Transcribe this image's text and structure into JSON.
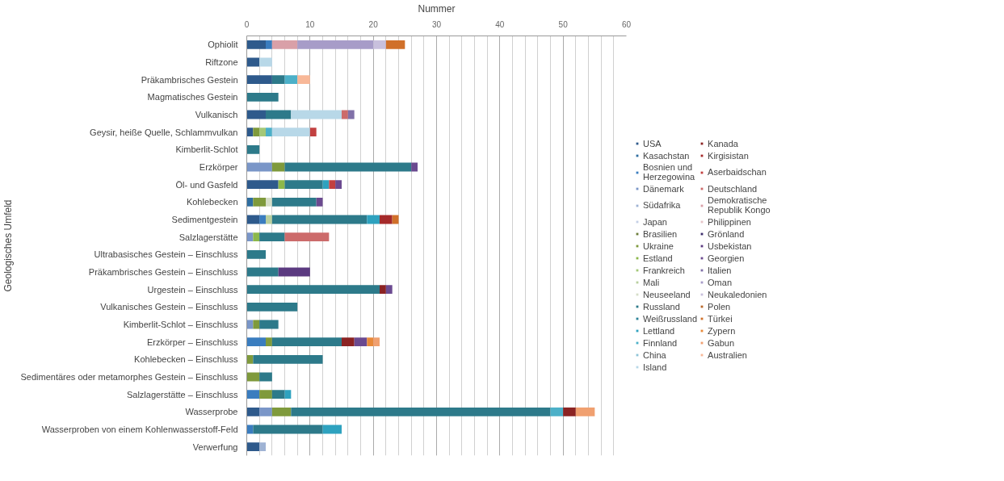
{
  "chart_data": {
    "type": "bar",
    "orientation": "horizontal",
    "stacked": true,
    "xlabel": "Nummer",
    "ylabel": "Geologisches Umfeld",
    "xlim": [
      0,
      60
    ],
    "xticks": [
      0,
      10,
      20,
      30,
      40,
      50,
      60
    ],
    "grid": "x",
    "legend": "right",
    "categories": [
      "Ophiolit",
      "Riftzone",
      "Präkambrisches Gestein",
      "Magmatisches Gestein",
      "Vulkanisch",
      "Geysir, heiße Quelle, Schlammvulkan",
      "Kimberlit-Schlot",
      "Erzkörper",
      "Öl- und Gasfeld",
      "Kohlebecken",
      "Sedimentgestein",
      "Salzlagerstätte",
      "Ultrabasisches Gestein – Einschluss",
      "Präkambrisches Gestein – Einschluss",
      "Urgestein – Einschluss",
      "Vulkanisches Gestein – Einschluss",
      "Kimberlit-Schlot – Einschluss",
      "Erzkörper – Einschluss",
      "Kohlebecken – Einschluss",
      "Sedimentäres oder metamorphes Gestein – Einschluss",
      "Salzlagerstätte – Einschluss",
      "Wasserprobe",
      "Wasserproben von einem Kohlenwasserstoff-Feld",
      "Verwerfung"
    ],
    "series": [
      {
        "name": "USA",
        "color": "#2e5a8c",
        "values": [
          3,
          2,
          4,
          0,
          3,
          1,
          0,
          0,
          5,
          0,
          2,
          0,
          0,
          0,
          0,
          0,
          0,
          0,
          0,
          0,
          0,
          2,
          0,
          2
        ]
      },
      {
        "name": "Kasachstan",
        "color": "#2f6ea0",
        "values": [
          0,
          0,
          0,
          0,
          0,
          0,
          0,
          0,
          0,
          1,
          0,
          0,
          0,
          0,
          0,
          0,
          0,
          0,
          0,
          0,
          0,
          0,
          0,
          0
        ]
      },
      {
        "name": "Bosnien und Herzegowina",
        "color": "#3a7dbf",
        "values": [
          1,
          0,
          0,
          0,
          0,
          0,
          0,
          0,
          0,
          0,
          1,
          0,
          0,
          0,
          0,
          0,
          0,
          3,
          0,
          0,
          2,
          0,
          1,
          0
        ]
      },
      {
        "name": "Dänemark",
        "color": "#7a96c8",
        "values": [
          0,
          0,
          0,
          0,
          0,
          0,
          0,
          4,
          0,
          0,
          0,
          1,
          0,
          0,
          0,
          0,
          1,
          0,
          0,
          0,
          0,
          2,
          0,
          0
        ]
      },
      {
        "name": "Südafrika",
        "color": "#9fb3d4",
        "values": [
          0,
          0,
          0,
          0,
          0,
          0,
          0,
          0,
          0,
          0,
          0,
          0,
          0,
          0,
          0,
          0,
          0,
          0,
          0,
          0,
          0,
          0,
          0,
          1
        ]
      },
      {
        "name": "Japan",
        "color": "#c4d0e6",
        "values": [
          0,
          0,
          0,
          0,
          0,
          0,
          0,
          0,
          0,
          0,
          0,
          0,
          0,
          0,
          0,
          0,
          0,
          0,
          0,
          0,
          0,
          0,
          0,
          0
        ]
      },
      {
        "name": "Brasilien",
        "color": "#6b7d3a",
        "values": [
          0,
          0,
          0,
          0,
          0,
          0,
          0,
          0,
          0,
          0,
          0,
          0,
          0,
          0,
          0,
          0,
          0,
          0,
          0,
          0,
          0,
          0,
          0,
          0
        ]
      },
      {
        "name": "Ukraine",
        "color": "#7f9a3c",
        "values": [
          0,
          0,
          0,
          0,
          0,
          1,
          0,
          2,
          0,
          2,
          0,
          0,
          0,
          0,
          0,
          0,
          1,
          1,
          1,
          2,
          2,
          3,
          0,
          0
        ]
      },
      {
        "name": "Estland",
        "color": "#8cb84a",
        "values": [
          0,
          0,
          0,
          0,
          0,
          0,
          0,
          0,
          1,
          0,
          0,
          1,
          0,
          0,
          0,
          0,
          0,
          0,
          0,
          0,
          0,
          0,
          0,
          0
        ]
      },
      {
        "name": "Frankreich",
        "color": "#a4c878",
        "values": [
          0,
          0,
          0,
          0,
          0,
          1,
          0,
          0,
          0,
          0,
          0,
          0,
          0,
          0,
          0,
          0,
          0,
          0,
          0,
          0,
          0,
          0,
          0,
          0
        ]
      },
      {
        "name": "Mali",
        "color": "#b9cf9f",
        "values": [
          0,
          0,
          0,
          0,
          0,
          0,
          0,
          0,
          0,
          0,
          1,
          0,
          0,
          0,
          0,
          0,
          0,
          0,
          0,
          0,
          0,
          0,
          0,
          0
        ]
      },
      {
        "name": "Neuseeland",
        "color": "#d6dec8",
        "values": [
          0,
          0,
          0,
          0,
          0,
          0,
          0,
          0,
          0,
          1,
          0,
          0,
          0,
          0,
          0,
          0,
          0,
          0,
          0,
          0,
          0,
          0,
          0,
          0
        ]
      },
      {
        "name": "Russland",
        "color": "#2d7a8a",
        "values": [
          0,
          0,
          2,
          5,
          4,
          0,
          2,
          20,
          6,
          7,
          15,
          4,
          3,
          5,
          21,
          8,
          3,
          11,
          11,
          2,
          2,
          41,
          11,
          0
        ]
      },
      {
        "name": "Weißrussland",
        "color": "#2c8399",
        "values": [
          0,
          0,
          0,
          0,
          0,
          0,
          0,
          0,
          0,
          0,
          0,
          0,
          0,
          0,
          0,
          0,
          0,
          0,
          0,
          0,
          0,
          0,
          0,
          0
        ]
      },
      {
        "name": "Lettland",
        "color": "#2ea2bf",
        "values": [
          0,
          0,
          0,
          0,
          0,
          0,
          0,
          0,
          1,
          0,
          2,
          0,
          0,
          0,
          0,
          0,
          0,
          0,
          0,
          0,
          1,
          0,
          3,
          0
        ]
      },
      {
        "name": "Finnland",
        "color": "#4cb0c8",
        "values": [
          0,
          0,
          2,
          0,
          0,
          1,
          0,
          0,
          0,
          0,
          0,
          0,
          0,
          0,
          0,
          0,
          0,
          0,
          0,
          0,
          0,
          2,
          0,
          0
        ]
      },
      {
        "name": "China",
        "color": "#8fc4d8",
        "values": [
          0,
          0,
          0,
          0,
          0,
          0,
          0,
          0,
          0,
          0,
          0,
          0,
          0,
          0,
          0,
          0,
          0,
          0,
          0,
          0,
          0,
          0,
          0,
          0
        ]
      },
      {
        "name": "Island",
        "color": "#b8d8e8",
        "values": [
          0,
          2,
          0,
          0,
          8,
          6,
          0,
          0,
          0,
          0,
          0,
          0,
          0,
          0,
          0,
          0,
          0,
          0,
          0,
          0,
          0,
          0,
          0,
          0
        ]
      },
      {
        "name": "Kanada",
        "color": "#8b2323",
        "values": [
          0,
          0,
          0,
          0,
          0,
          0,
          0,
          0,
          0,
          0,
          0,
          0,
          0,
          0,
          1,
          0,
          0,
          2,
          0,
          0,
          0,
          2,
          0,
          0
        ]
      },
      {
        "name": "Kirgisistan",
        "color": "#a52a2a",
        "values": [
          0,
          0,
          0,
          0,
          0,
          0,
          0,
          0,
          0,
          0,
          2,
          0,
          0,
          0,
          0,
          0,
          0,
          0,
          0,
          0,
          0,
          0,
          0,
          0
        ]
      },
      {
        "name": "Aserbaidschan",
        "color": "#c24040",
        "values": [
          0,
          0,
          0,
          0,
          0,
          1,
          0,
          0,
          1,
          0,
          0,
          0,
          0,
          0,
          0,
          0,
          0,
          0,
          0,
          0,
          0,
          0,
          0,
          0
        ]
      },
      {
        "name": "Deutschland",
        "color": "#cc6b6b",
        "values": [
          0,
          0,
          0,
          0,
          1,
          0,
          0,
          0,
          0,
          0,
          0,
          7,
          0,
          0,
          0,
          0,
          0,
          0,
          0,
          0,
          0,
          0,
          0,
          0
        ]
      },
      {
        "name": "Demokratische Republik Kongo",
        "color": "#d9a0a8",
        "values": [
          4,
          0,
          0,
          0,
          0,
          0,
          0,
          0,
          0,
          0,
          0,
          0,
          0,
          0,
          0,
          0,
          0,
          0,
          0,
          0,
          0,
          0,
          0,
          0
        ]
      },
      {
        "name": "Philippinen",
        "color": "#e6c4c8",
        "values": [
          0,
          0,
          0,
          0,
          0,
          0,
          0,
          0,
          0,
          0,
          0,
          0,
          0,
          0,
          0,
          0,
          0,
          0,
          0,
          0,
          0,
          0,
          0,
          0
        ]
      },
      {
        "name": "Grönland",
        "color": "#3d2d6b",
        "values": [
          0,
          0,
          0,
          0,
          0,
          0,
          0,
          0,
          0,
          0,
          0,
          0,
          0,
          0,
          0,
          0,
          0,
          0,
          0,
          0,
          0,
          0,
          0,
          0
        ]
      },
      {
        "name": "Usbekistan",
        "color": "#5b3a80",
        "values": [
          0,
          0,
          0,
          0,
          0,
          0,
          0,
          0,
          0,
          0,
          0,
          0,
          0,
          5,
          0,
          0,
          0,
          0,
          0,
          0,
          0,
          0,
          0,
          0
        ]
      },
      {
        "name": "Georgien",
        "color": "#6b4a90",
        "values": [
          0,
          0,
          0,
          0,
          0,
          0,
          0,
          1,
          1,
          1,
          0,
          0,
          0,
          0,
          1,
          0,
          0,
          2,
          0,
          0,
          0,
          0,
          0,
          0
        ]
      },
      {
        "name": "Italien",
        "color": "#8070a8",
        "values": [
          0,
          0,
          0,
          0,
          1,
          0,
          0,
          0,
          0,
          0,
          0,
          0,
          0,
          0,
          0,
          0,
          0,
          0,
          0,
          0,
          0,
          0,
          0,
          0
        ]
      },
      {
        "name": "Oman",
        "color": "#a79cc8",
        "values": [
          12,
          0,
          0,
          0,
          0,
          0,
          0,
          0,
          0,
          0,
          0,
          0,
          0,
          0,
          0,
          0,
          0,
          0,
          0,
          0,
          0,
          0,
          0,
          0
        ]
      },
      {
        "name": "Neukaledonien",
        "color": "#c8c0dd",
        "values": [
          2,
          0,
          0,
          0,
          0,
          0,
          0,
          0,
          0,
          0,
          0,
          0,
          0,
          0,
          0,
          0,
          0,
          0,
          0,
          0,
          0,
          0,
          0,
          0
        ]
      },
      {
        "name": "Polen",
        "color": "#b8682a",
        "values": [
          0,
          0,
          0,
          0,
          0,
          0,
          0,
          0,
          0,
          0,
          0,
          0,
          0,
          0,
          0,
          0,
          0,
          0,
          0,
          0,
          0,
          0,
          0,
          0
        ]
      },
      {
        "name": "Türkei",
        "color": "#d0702a",
        "values": [
          3,
          0,
          0,
          0,
          0,
          0,
          0,
          0,
          0,
          0,
          1,
          0,
          0,
          0,
          0,
          0,
          0,
          0,
          0,
          0,
          0,
          0,
          0,
          0
        ]
      },
      {
        "name": "Zypern",
        "color": "#e88a3a",
        "values": [
          0,
          0,
          0,
          0,
          0,
          0,
          0,
          0,
          0,
          0,
          0,
          0,
          0,
          0,
          0,
          0,
          0,
          1,
          0,
          0,
          0,
          0,
          0,
          0
        ]
      },
      {
        "name": "Gabun",
        "color": "#f0a070",
        "values": [
          0,
          0,
          0,
          0,
          0,
          0,
          0,
          0,
          0,
          0,
          0,
          0,
          0,
          0,
          0,
          0,
          0,
          1,
          0,
          0,
          0,
          3,
          0,
          0
        ]
      },
      {
        "name": "Australien",
        "color": "#f8b898",
        "values": [
          0,
          0,
          2,
          0,
          0,
          0,
          0,
          0,
          0,
          0,
          0,
          0,
          0,
          0,
          0,
          0,
          0,
          0,
          0,
          0,
          0,
          0,
          0,
          0
        ]
      }
    ]
  }
}
